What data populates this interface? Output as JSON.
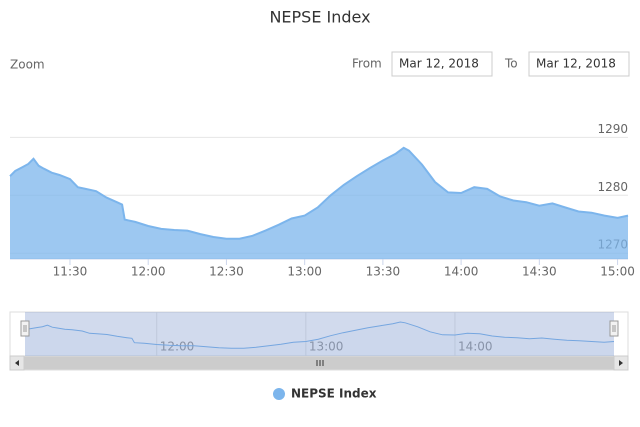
{
  "chart_data": {
    "type": "area",
    "title": "NEPSE Index",
    "x": [
      667,
      669,
      672,
      674,
      676,
      678,
      680,
      683,
      686,
      690,
      693,
      696,
      700,
      704,
      708,
      710,
      711,
      715,
      720,
      725,
      730,
      735,
      740,
      745,
      750,
      755,
      760,
      765,
      770,
      775,
      780,
      785,
      790,
      795,
      800,
      805,
      810,
      815,
      818,
      820,
      825,
      830,
      835,
      840,
      845,
      850,
      855,
      860,
      865,
      870,
      875,
      880,
      885,
      890,
      895,
      900,
      904
    ],
    "series": [
      {
        "name": "NEPSE Index",
        "color": "#7cb5ec",
        "values": [
          1283.3,
          1284.2,
          1284.9,
          1285.4,
          1286.3,
          1285.1,
          1284.6,
          1283.9,
          1283.5,
          1282.8,
          1281.4,
          1281.1,
          1280.7,
          1279.6,
          1278.8,
          1278.4,
          1275.8,
          1275.4,
          1274.7,
          1274.2,
          1274.0,
          1273.9,
          1273.3,
          1272.8,
          1272.5,
          1272.5,
          1273.0,
          1273.9,
          1274.9,
          1276.0,
          1276.5,
          1277.9,
          1280.0,
          1281.8,
          1283.3,
          1284.7,
          1286.0,
          1287.2,
          1288.2,
          1287.7,
          1285.3,
          1282.3,
          1280.5,
          1280.4,
          1281.4,
          1281.1,
          1279.8,
          1279.1,
          1278.8,
          1278.2,
          1278.6,
          1277.9,
          1277.2,
          1277.0,
          1276.5,
          1276.1,
          1276.5
        ]
      }
    ],
    "xlim": [
      667,
      904
    ],
    "xticks": [
      {
        "value": 690,
        "label": "11:30"
      },
      {
        "value": 720,
        "label": "12:00"
      },
      {
        "value": 750,
        "label": "12:30"
      },
      {
        "value": 780,
        "label": "13:00"
      },
      {
        "value": 810,
        "label": "13:30"
      },
      {
        "value": 840,
        "label": "14:00"
      },
      {
        "value": 870,
        "label": "14:30"
      },
      {
        "value": 900,
        "label": "15:00"
      }
    ],
    "ylim": [
      1269,
      1293
    ],
    "yticks": [
      1270,
      1280,
      1290
    ],
    "grid": true,
    "legend_position": "bottom",
    "range_selector": {
      "zoom_label": "Zoom",
      "from_label": "From",
      "from_date": "Mar 12, 2018",
      "to_label": "To",
      "to_date": "Mar 12, 2018"
    },
    "navigator": {
      "xticks": [
        {
          "value": 720,
          "label": "12:00"
        },
        {
          "value": 780,
          "label": "13:00"
        },
        {
          "value": 840,
          "label": "14:00"
        }
      ]
    }
  }
}
